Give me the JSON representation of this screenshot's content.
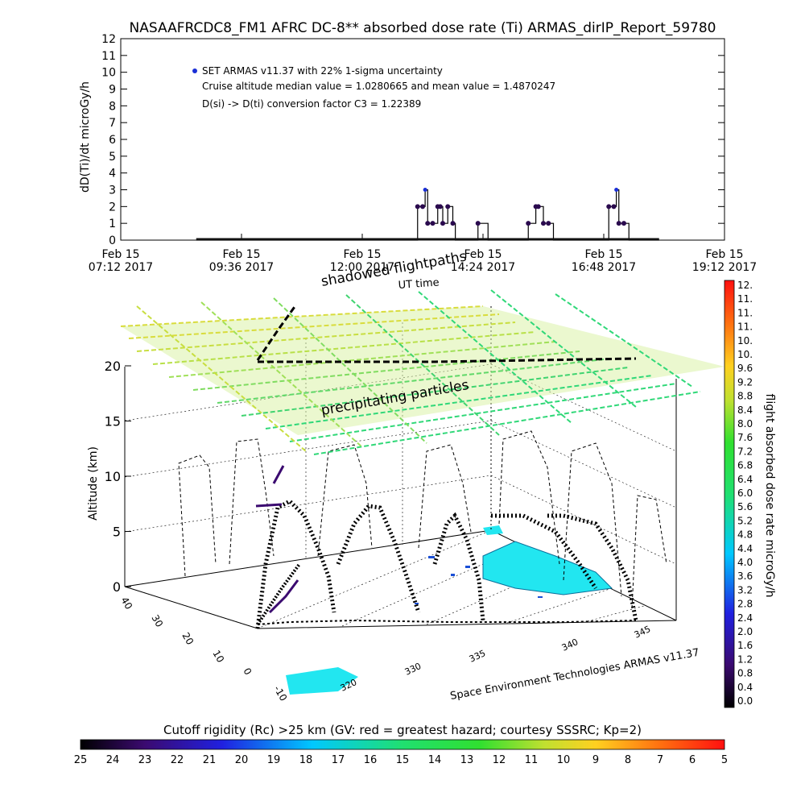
{
  "title": "NASAAFRCDC8_FM1 AFRC DC-8** absorbed dose rate (Ti) ARMAS_dirIP_Report_59780",
  "chart_data": [
    {
      "type": "line",
      "ylabel": "dD(Ti)/dt microGy/h",
      "xlabel": "UT time",
      "ylim": [
        0,
        12
      ],
      "yticks": [
        0,
        1,
        2,
        3,
        4,
        5,
        6,
        7,
        8,
        9,
        10,
        11,
        12
      ],
      "xticks": [
        {
          "day": "Feb 15",
          "time": "07:12 2017"
        },
        {
          "day": "Feb 15",
          "time": "09:36 2017"
        },
        {
          "day": "Feb 15",
          "time": "12:00 2017"
        },
        {
          "day": "Feb 15",
          "time": "14:24 2017"
        },
        {
          "day": "Feb 15",
          "time": "16:48 2017"
        },
        {
          "day": "Feb 15",
          "time": "19:12 2017"
        }
      ],
      "xlim_hours": [
        7.2,
        19.2
      ],
      "legend": [
        "SET ARMAS v11.37 with 22% 1-sigma uncertainty",
        "Cruise altitude median value = 1.0280665 and mean value = 1.4870247",
        "D(si) -> D(ti) conversion factor C3 = 1.22389"
      ],
      "series": [
        {
          "hours": [
            8.7,
            11.2,
            13.0,
            13.1,
            13.2,
            13.25,
            13.3,
            13.4,
            13.5,
            13.55,
            13.6,
            13.7,
            13.8,
            13.85,
            14.3,
            14.5,
            14.9,
            15.3,
            15.45,
            15.5,
            15.6,
            15.7,
            15.8,
            15.9,
            16.8,
            16.9,
            17.0,
            17.05,
            17.1,
            17.2,
            17.3,
            17.9
          ],
          "values": [
            0,
            0,
            0,
            2,
            2,
            3,
            1,
            1,
            2,
            2,
            1,
            2,
            1,
            0,
            1,
            0,
            0,
            1,
            2,
            2,
            1,
            1,
            0,
            0,
            0,
            2,
            2,
            3,
            1,
            1,
            0,
            0
          ]
        }
      ]
    },
    {
      "type": "3d-trajectory",
      "zlabel": "Altitude (km)",
      "zticks": [
        0,
        5,
        10,
        15,
        20
      ],
      "ylat_ticks": [
        40,
        30,
        20,
        10,
        0,
        -10
      ],
      "xlon_ticks": [
        320,
        330,
        335,
        340,
        345
      ],
      "annotations": [
        "shadowed flightpaths",
        "precipitating particles",
        "UT time"
      ],
      "credit": "Space Environment Technologies ARMAS v11.37",
      "colorbar": {
        "label": "flight absorbed dose rate microGy/h",
        "ticks": [
          "12.",
          "11.",
          "11.",
          "11.",
          "10.",
          "10.",
          "9.6",
          "9.2",
          "8.8",
          "8.4",
          "8.0",
          "7.6",
          "7.2",
          "6.8",
          "6.4",
          "6.0",
          "5.6",
          "5.2",
          "4.8",
          "4.4",
          "4.0",
          "3.6",
          "3.2",
          "2.8",
          "2.4",
          "2.0",
          "1.6",
          "1.2",
          "0.8",
          "0.4",
          "0.0"
        ]
      }
    },
    {
      "type": "colorbar",
      "title": "Cutoff rigidity (Rc) >25 km (GV: red = greatest hazard; courtesy SSSRC; Kp=2)",
      "ticks": [
        25,
        24,
        23,
        22,
        21,
        20,
        19,
        18,
        17,
        16,
        15,
        14,
        13,
        12,
        11,
        10,
        9,
        8,
        7,
        6,
        5
      ]
    }
  ],
  "colors": {
    "marker": "#1a2fd6",
    "dark_line": "#2a0a4e",
    "cyan_region": "#22e6f0",
    "grid_green": "#30d878",
    "grid_yellow": "#d8dc3c"
  }
}
